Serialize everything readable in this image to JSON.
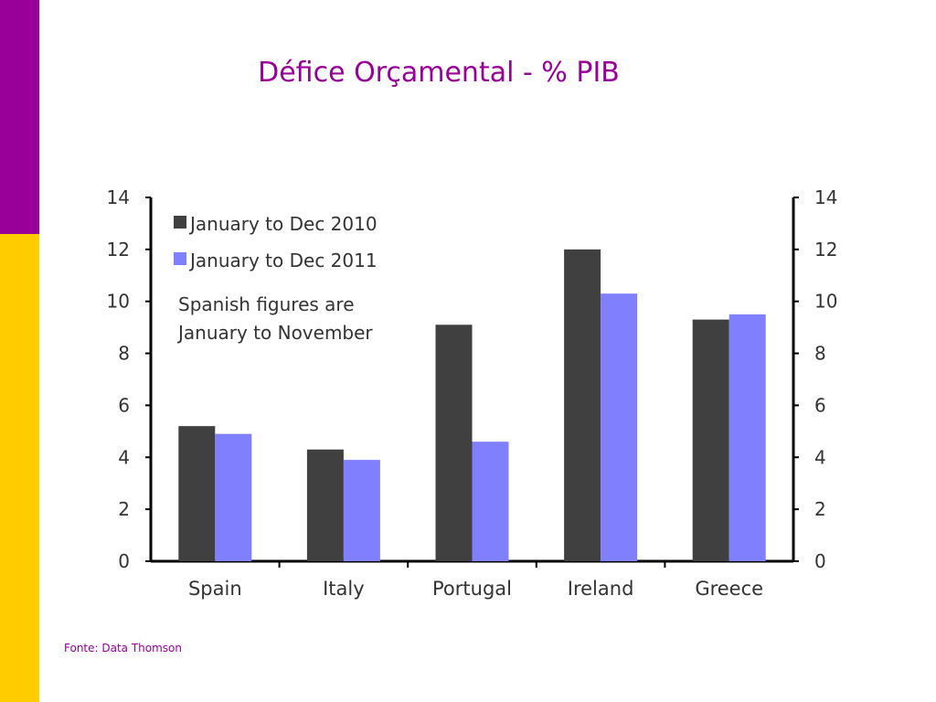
{
  "slide": {
    "title": "Défice Orçamental - % PIB",
    "footnote": "Fonte: Data Thomson",
    "colors": {
      "title": "#990099",
      "accent_top": "#990099",
      "accent_bottom": "#ffcc00"
    }
  },
  "chart_data": {
    "type": "bar",
    "categories": [
      "Spain",
      "Italy",
      "Portugal",
      "Ireland",
      "Greece"
    ],
    "series": [
      {
        "name": "January to Dec 2010",
        "color": "#404040",
        "values": [
          5.2,
          4.3,
          9.1,
          12.0,
          9.3
        ]
      },
      {
        "name": "January to Dec 2011",
        "color": "#8080ff",
        "values": [
          4.9,
          3.9,
          4.6,
          10.3,
          9.5
        ]
      }
    ],
    "ylim": [
      0,
      14
    ],
    "yticks": [
      0,
      2,
      4,
      6,
      8,
      10,
      12,
      14
    ],
    "secondary_axis": true,
    "legend": "top-left",
    "annotation": [
      "Spanish figures are",
      "January to November"
    ],
    "grid": false
  }
}
